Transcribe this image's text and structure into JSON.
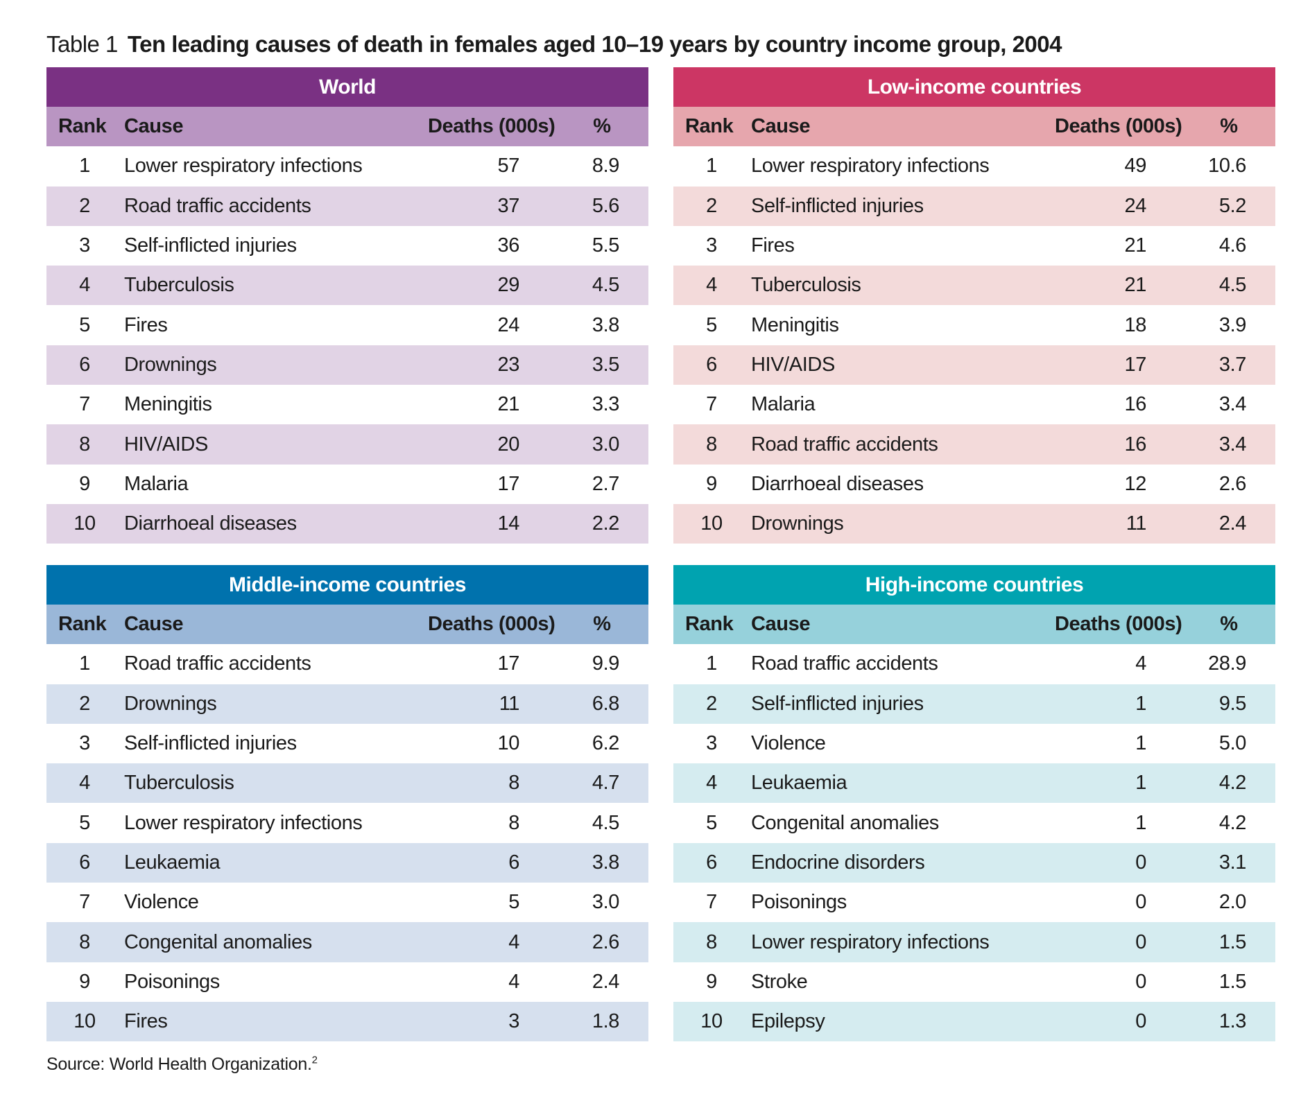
{
  "caption": {
    "label": "Table 1",
    "title": "Ten leading causes of death in females aged 10–19 years by country income group, 2004"
  },
  "columns": {
    "rank": "Rank",
    "cause": "Cause",
    "deaths": "Deaths (000s)",
    "pct": "%"
  },
  "panels": [
    {
      "id": "world",
      "title": "World",
      "colors": {
        "title_bg": "#7a3183",
        "header_bg": "#b995c2",
        "stripe_bg": "#e1d3e5"
      },
      "rows": [
        {
          "rank": "1",
          "cause": "Lower respiratory infections",
          "deaths": "57",
          "pct": "8.9"
        },
        {
          "rank": "2",
          "cause": "Road traffic accidents",
          "deaths": "37",
          "pct": "5.6"
        },
        {
          "rank": "3",
          "cause": "Self-inflicted injuries",
          "deaths": "36",
          "pct": "5.5"
        },
        {
          "rank": "4",
          "cause": "Tuberculosis",
          "deaths": "29",
          "pct": "4.5"
        },
        {
          "rank": "5",
          "cause": "Fires",
          "deaths": "24",
          "pct": "3.8"
        },
        {
          "rank": "6",
          "cause": "Drownings",
          "deaths": "23",
          "pct": "3.5"
        },
        {
          "rank": "7",
          "cause": "Meningitis",
          "deaths": "21",
          "pct": "3.3"
        },
        {
          "rank": "8",
          "cause": "HIV/AIDS",
          "deaths": "20",
          "pct": "3.0"
        },
        {
          "rank": "9",
          "cause": "Malaria",
          "deaths": "17",
          "pct": "2.7"
        },
        {
          "rank": "10",
          "cause": "Diarrhoeal diseases",
          "deaths": "14",
          "pct": "2.2"
        }
      ]
    },
    {
      "id": "low",
      "title": "Low-income countries",
      "colors": {
        "title_bg": "#cc3664",
        "header_bg": "#e6a6ad",
        "stripe_bg": "#f3dada"
      },
      "rows": [
        {
          "rank": "1",
          "cause": "Lower respiratory infections",
          "deaths": "49",
          "pct": "10.6"
        },
        {
          "rank": "2",
          "cause": "Self-inflicted injuries",
          "deaths": "24",
          "pct": "5.2"
        },
        {
          "rank": "3",
          "cause": "Fires",
          "deaths": "21",
          "pct": "4.6"
        },
        {
          "rank": "4",
          "cause": "Tuberculosis",
          "deaths": "21",
          "pct": "4.5"
        },
        {
          "rank": "5",
          "cause": "Meningitis",
          "deaths": "18",
          "pct": "3.9"
        },
        {
          "rank": "6",
          "cause": "HIV/AIDS",
          "deaths": "17",
          "pct": "3.7"
        },
        {
          "rank": "7",
          "cause": "Malaria",
          "deaths": "16",
          "pct": "3.4"
        },
        {
          "rank": "8",
          "cause": "Road traffic accidents",
          "deaths": "16",
          "pct": "3.4"
        },
        {
          "rank": "9",
          "cause": "Diarrhoeal diseases",
          "deaths": "12",
          "pct": "2.6"
        },
        {
          "rank": "10",
          "cause": "Drownings",
          "deaths": "11",
          "pct": "2.4"
        }
      ]
    },
    {
      "id": "middle",
      "title": "Middle-income countries",
      "colors": {
        "title_bg": "#0072ad",
        "header_bg": "#9ab7d8",
        "stripe_bg": "#d6e0ee"
      },
      "rows": [
        {
          "rank": "1",
          "cause": "Road traffic accidents",
          "deaths": "17",
          "pct": "9.9"
        },
        {
          "rank": "2",
          "cause": "Drownings",
          "deaths": "11",
          "pct": "6.8"
        },
        {
          "rank": "3",
          "cause": "Self-inflicted injuries",
          "deaths": "10",
          "pct": "6.2"
        },
        {
          "rank": "4",
          "cause": "Tuberculosis",
          "deaths": "8",
          "pct": "4.7"
        },
        {
          "rank": "5",
          "cause": "Lower respiratory infections",
          "deaths": "8",
          "pct": "4.5"
        },
        {
          "rank": "6",
          "cause": "Leukaemia",
          "deaths": "6",
          "pct": "3.8"
        },
        {
          "rank": "7",
          "cause": "Violence",
          "deaths": "5",
          "pct": "3.0"
        },
        {
          "rank": "8",
          "cause": "Congenital anomalies",
          "deaths": "4",
          "pct": "2.6"
        },
        {
          "rank": "9",
          "cause": "Poisonings",
          "deaths": "4",
          "pct": "2.4"
        },
        {
          "rank": "10",
          "cause": "Fires",
          "deaths": "3",
          "pct": "1.8"
        }
      ]
    },
    {
      "id": "high",
      "title": "High-income countries",
      "colors": {
        "title_bg": "#00a3b0",
        "header_bg": "#96d1db",
        "stripe_bg": "#d5ecf0"
      },
      "rows": [
        {
          "rank": "1",
          "cause": "Road traffic accidents",
          "deaths": "4",
          "pct": "28.9"
        },
        {
          "rank": "2",
          "cause": "Self-inflicted injuries",
          "deaths": "1",
          "pct": "9.5"
        },
        {
          "rank": "3",
          "cause": "Violence",
          "deaths": "1",
          "pct": "5.0"
        },
        {
          "rank": "4",
          "cause": "Leukaemia",
          "deaths": "1",
          "pct": "4.2"
        },
        {
          "rank": "5",
          "cause": "Congenital anomalies",
          "deaths": "1",
          "pct": "4.2"
        },
        {
          "rank": "6",
          "cause": "Endocrine disorders",
          "deaths": "0",
          "pct": "3.1"
        },
        {
          "rank": "7",
          "cause": "Poisonings",
          "deaths": "0",
          "pct": "2.0"
        },
        {
          "rank": "8",
          "cause": "Lower respiratory infections",
          "deaths": "0",
          "pct": "1.5"
        },
        {
          "rank": "9",
          "cause": "Stroke",
          "deaths": "0",
          "pct": "1.5"
        },
        {
          "rank": "10",
          "cause": "Epilepsy",
          "deaths": "0",
          "pct": "1.3"
        }
      ]
    }
  ],
  "source": {
    "text": "Source: World Health Organization.",
    "ref": "2"
  }
}
